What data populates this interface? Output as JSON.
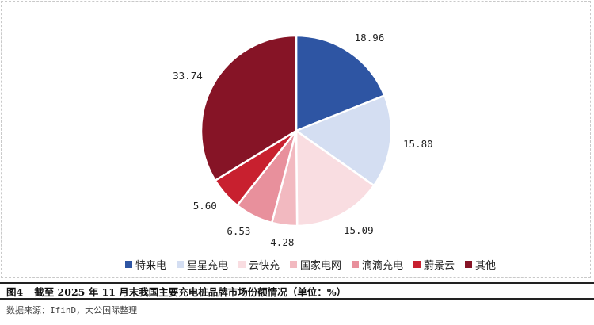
{
  "chart_data": {
    "type": "pie",
    "unit": "%",
    "slices": [
      {
        "name": "特来电",
        "value": 18.96,
        "label": "18.96",
        "color": "#2e55a3"
      },
      {
        "name": "星星充电",
        "value": 15.8,
        "label": "15.80",
        "color": "#d4def2"
      },
      {
        "name": "云快充",
        "value": 15.09,
        "label": "15.09",
        "color": "#f9dde1"
      },
      {
        "name": "国家电网",
        "value": 4.28,
        "label": "4.28",
        "color": "#f2b9c0"
      },
      {
        "name": "滴滴充电",
        "value": 6.53,
        "label": "6.53",
        "color": "#e8909c"
      },
      {
        "name": "蔚景云",
        "value": 5.6,
        "label": "5.60",
        "color": "#c8202f"
      },
      {
        "name": "其他",
        "value": 33.74,
        "label": "33.74",
        "color": "#861426"
      }
    ],
    "legend_position": "bottom"
  },
  "caption": {
    "figure_no": "图4",
    "title": "截至 2025 年 11 月末我国主要充电桩品牌市场份额情况（单位：%）"
  },
  "source": "数据来源：IfinD，大公国际整理"
}
